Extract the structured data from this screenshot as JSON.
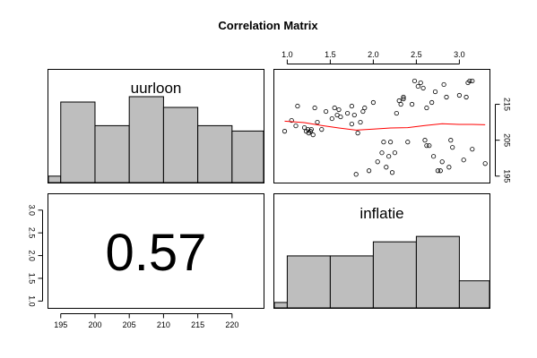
{
  "chart_data": {
    "type": "pairs",
    "title": "Correlation Matrix",
    "variables": [
      "uurloon",
      "inflatie"
    ],
    "correlation": "0.57",
    "axes": {
      "uurloon": {
        "range": [
          193.2,
          224.6
        ],
        "ticks": [
          195,
          200,
          205,
          210,
          215,
          220
        ],
        "tick_labels": [
          "195",
          "200",
          "205",
          "210",
          "215",
          "220"
        ],
        "side_ticks": [
          195,
          205,
          215
        ],
        "side_tick_labels": [
          "195",
          "205",
          "215"
        ]
      },
      "inflatie": {
        "range": [
          0.85,
          3.35
        ],
        "ticks": [
          1.0,
          1.5,
          2.0,
          2.5,
          3.0
        ],
        "tick_labels": [
          "1.0",
          "1.5",
          "2.0",
          "2.5",
          "3.0"
        ],
        "side_ticks": [
          1.0,
          1.5,
          2.0,
          2.5,
          3.0
        ],
        "side_tick_labels": [
          "1.0",
          "1.5",
          "2.0",
          "2.5",
          "3.0"
        ]
      }
    },
    "histograms": {
      "uurloon": {
        "breaks": [
          190,
          195,
          200,
          205,
          210,
          215,
          220,
          225
        ],
        "relative_heights": [
          0.06,
          0.75,
          0.53,
          0.8,
          0.7,
          0.53,
          0.48
        ]
      },
      "inflatie": {
        "breaks": [
          0.5,
          1.0,
          1.5,
          2.0,
          2.5,
          3.0,
          3.5
        ],
        "relative_heights": [
          0.05,
          0.48,
          0.48,
          0.61,
          0.66,
          0.25
        ]
      }
    },
    "scatter": {
      "x_variable": "inflatie",
      "y_variable": "uurloon",
      "points": [
        [
          0.97,
          207.5
        ],
        [
          1.05,
          210.5
        ],
        [
          1.1,
          209.0
        ],
        [
          1.12,
          214.5
        ],
        [
          1.2,
          208.5
        ],
        [
          1.22,
          207.5
        ],
        [
          1.24,
          208.0
        ],
        [
          1.25,
          207.0
        ],
        [
          1.27,
          207.5
        ],
        [
          1.28,
          208.0
        ],
        [
          1.3,
          206.5
        ],
        [
          1.32,
          214.0
        ],
        [
          1.35,
          210.0
        ],
        [
          1.4,
          208.0
        ],
        [
          1.45,
          213.0
        ],
        [
          1.52,
          211.0
        ],
        [
          1.55,
          214.0
        ],
        [
          1.58,
          212.0
        ],
        [
          1.6,
          213.5
        ],
        [
          1.62,
          211.5
        ],
        [
          1.7,
          212.5
        ],
        [
          1.75,
          209.5
        ],
        [
          1.75,
          214.5
        ],
        [
          1.78,
          212.0
        ],
        [
          1.8,
          195.5
        ],
        [
          1.82,
          207.0
        ],
        [
          1.85,
          210.0
        ],
        [
          1.88,
          213.0
        ],
        [
          1.9,
          214.0
        ],
        [
          1.95,
          196.5
        ],
        [
          2.0,
          215.5
        ],
        [
          2.05,
          199.0
        ],
        [
          2.1,
          201.5
        ],
        [
          2.12,
          204.5
        ],
        [
          2.15,
          197.5
        ],
        [
          2.18,
          200.5
        ],
        [
          2.2,
          204.5
        ],
        [
          2.22,
          196.0
        ],
        [
          2.25,
          201.5
        ],
        [
          2.27,
          212.5
        ],
        [
          2.3,
          216.0
        ],
        [
          2.32,
          215.0
        ],
        [
          2.35,
          217.0
        ],
        [
          2.35,
          216.5
        ],
        [
          2.4,
          204.5
        ],
        [
          2.45,
          215.0
        ],
        [
          2.48,
          221.5
        ],
        [
          2.52,
          220.0
        ],
        [
          2.55,
          221.0
        ],
        [
          2.58,
          219.5
        ],
        [
          2.6,
          205.0
        ],
        [
          2.62,
          203.5
        ],
        [
          2.62,
          214.0
        ],
        [
          2.65,
          203.5
        ],
        [
          2.68,
          215.5
        ],
        [
          2.7,
          200.5
        ],
        [
          2.72,
          218.5
        ],
        [
          2.75,
          196.5
        ],
        [
          2.78,
          196.5
        ],
        [
          2.8,
          199.0
        ],
        [
          2.82,
          220.5
        ],
        [
          2.85,
          217.0
        ],
        [
          2.88,
          197.5
        ],
        [
          2.9,
          205.0
        ],
        [
          2.92,
          203.0
        ],
        [
          3.0,
          217.5
        ],
        [
          3.05,
          199.5
        ],
        [
          3.08,
          217.0
        ],
        [
          3.1,
          221.0
        ],
        [
          3.12,
          221.5
        ],
        [
          3.15,
          221.5
        ],
        [
          3.15,
          202.5
        ],
        [
          3.3,
          198.5
        ]
      ],
      "smoother": [
        [
          0.97,
          210.3
        ],
        [
          1.2,
          209.9
        ],
        [
          1.4,
          209.1
        ],
        [
          1.6,
          208.4
        ],
        [
          1.8,
          207.8
        ],
        [
          2.0,
          208.1
        ],
        [
          2.2,
          208.4
        ],
        [
          2.4,
          208.5
        ],
        [
          2.6,
          209.1
        ],
        [
          2.8,
          209.6
        ],
        [
          3.0,
          209.4
        ],
        [
          3.15,
          209.4
        ],
        [
          3.3,
          209.3
        ]
      ]
    },
    "colors": {
      "bar_fill": "#bebebe",
      "smoother": "#ff0000",
      "frame": "#000000"
    }
  }
}
